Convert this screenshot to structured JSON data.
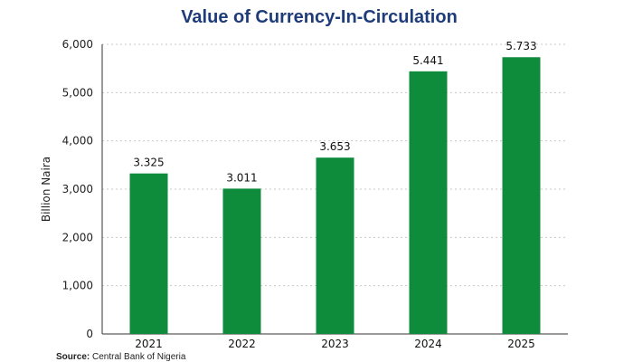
{
  "chart_data": {
    "type": "bar",
    "title": "Value of Currency-In-Circulation",
    "ylabel": "Billion Naira",
    "xlabel": "",
    "categories": [
      "2021",
      "2022",
      "2023",
      "2024",
      "2025"
    ],
    "values": [
      3325,
      3011,
      3653,
      5441,
      5733
    ],
    "value_labels": [
      "3.325",
      "3.011",
      "3.653",
      "5.441",
      "5.733"
    ],
    "ylim": [
      0,
      6000
    ],
    "yticks": [
      0,
      1000,
      2000,
      3000,
      4000,
      5000,
      6000
    ],
    "ytick_labels": [
      "0",
      "1,000",
      "2,000",
      "3,000",
      "4,000",
      "5,000",
      "6,000"
    ],
    "grid": true,
    "colors": {
      "bar": "#0f8b3c",
      "title": "#1f3c7a",
      "grid": "#c8c8c8",
      "axis": "#333333"
    }
  },
  "source": {
    "label": "Source:",
    "text": "Central Bank of Nigeria"
  }
}
